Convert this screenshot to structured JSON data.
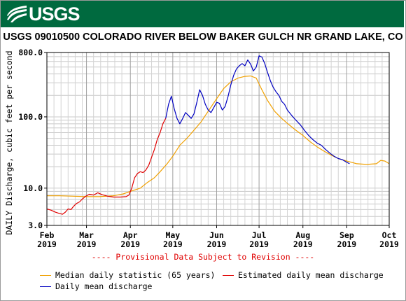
{
  "header": {
    "logo_text": "USGS",
    "brand_color": "#006a3f",
    "logo_icon": "usgs-wave-icon"
  },
  "chart_data": {
    "type": "line",
    "title": "USGS 09010500 COLORADO RIVER BELOW BAKER GULCH NR GRAND LAKE, CO",
    "ylabel": "DAILY Discharge, cubic feet per second",
    "xlabel": "",
    "yscale": "log",
    "ylim": [
      3.0,
      800.0
    ],
    "xlim": [
      "2019-02-01",
      "2019-10-01"
    ],
    "grid": true,
    "legend_position": "bottom",
    "ytick_labels": [
      "800.0",
      "100.0",
      "10.0",
      "3.0"
    ],
    "yticks": [
      800,
      100,
      10,
      3
    ],
    "xtick_labels": [
      {
        "month": "Feb",
        "year": "2019",
        "date": "2019-02-01"
      },
      {
        "month": "Mar",
        "year": "2019",
        "date": "2019-03-01"
      },
      {
        "month": "Apr",
        "year": "2019",
        "date": "2019-04-01"
      },
      {
        "month": "May",
        "year": "2019",
        "date": "2019-05-01"
      },
      {
        "month": "Jun",
        "year": "2019",
        "date": "2019-06-01"
      },
      {
        "month": "Jul",
        "year": "2019",
        "date": "2019-07-01"
      },
      {
        "month": "Aug",
        "year": "2019",
        "date": "2019-08-01"
      },
      {
        "month": "Sep",
        "year": "2019",
        "date": "2019-09-01"
      },
      {
        "month": "Oct",
        "year": "2019",
        "date": "2019-10-01"
      }
    ],
    "annotation": "---- Provisional Data Subject to Revision ----",
    "annotation_color": "#e00000",
    "series": [
      {
        "name": "Median daily statistic (65 years)",
        "color": "#f0a000",
        "points": [
          [
            "2019-02-01",
            7.8
          ],
          [
            "2019-02-10",
            7.8
          ],
          [
            "2019-02-20",
            7.7
          ],
          [
            "2019-03-01",
            7.6
          ],
          [
            "2019-03-10",
            7.6
          ],
          [
            "2019-03-20",
            7.8
          ],
          [
            "2019-03-27",
            8.3
          ],
          [
            "2019-04-01",
            9.0
          ],
          [
            "2019-04-08",
            10.0
          ],
          [
            "2019-04-13",
            12.0
          ],
          [
            "2019-04-18",
            14.0
          ],
          [
            "2019-04-22",
            17.0
          ],
          [
            "2019-04-27",
            22.0
          ],
          [
            "2019-05-01",
            28.0
          ],
          [
            "2019-05-06",
            40.0
          ],
          [
            "2019-05-11",
            50.0
          ],
          [
            "2019-05-16",
            65.0
          ],
          [
            "2019-05-21",
            85.0
          ],
          [
            "2019-05-26",
            120.0
          ],
          [
            "2019-06-01",
            180.0
          ],
          [
            "2019-06-06",
            250.0
          ],
          [
            "2019-06-11",
            310.0
          ],
          [
            "2019-06-16",
            350.0
          ],
          [
            "2019-06-21",
            370.0
          ],
          [
            "2019-06-25",
            375.0
          ],
          [
            "2019-06-29",
            350.0
          ],
          [
            "2019-07-03",
            240.0
          ],
          [
            "2019-07-07",
            170.0
          ],
          [
            "2019-07-12",
            120.0
          ],
          [
            "2019-07-17",
            95.0
          ],
          [
            "2019-07-22",
            78.0
          ],
          [
            "2019-07-27",
            65.0
          ],
          [
            "2019-08-01",
            55.0
          ],
          [
            "2019-08-06",
            45.0
          ],
          [
            "2019-08-11",
            38.0
          ],
          [
            "2019-08-16",
            33.0
          ],
          [
            "2019-08-21",
            29.0
          ],
          [
            "2019-08-26",
            26.0
          ],
          [
            "2019-09-01",
            24.0
          ],
          [
            "2019-09-08",
            22.0
          ],
          [
            "2019-09-15",
            21.5
          ],
          [
            "2019-09-22",
            22.0
          ],
          [
            "2019-09-25",
            24.5
          ],
          [
            "2019-09-28",
            24.0
          ],
          [
            "2019-10-01",
            22.0
          ]
        ]
      },
      {
        "name": "Estimated daily mean discharge",
        "color": "#e00000",
        "points": [
          [
            "2019-02-01",
            5.1
          ],
          [
            "2019-02-04",
            4.9
          ],
          [
            "2019-02-07",
            4.6
          ],
          [
            "2019-02-10",
            4.4
          ],
          [
            "2019-02-12",
            4.3
          ],
          [
            "2019-02-14",
            4.6
          ],
          [
            "2019-02-16",
            5.1
          ],
          [
            "2019-02-18",
            5.0
          ],
          [
            "2019-02-20",
            5.6
          ],
          [
            "2019-02-22",
            6.1
          ],
          [
            "2019-02-24",
            6.4
          ],
          [
            "2019-02-26",
            7.0
          ],
          [
            "2019-02-28",
            7.6
          ],
          [
            "2019-03-03",
            8.2
          ],
          [
            "2019-03-06",
            8.0
          ],
          [
            "2019-03-09",
            8.6
          ],
          [
            "2019-03-12",
            8.1
          ],
          [
            "2019-03-16",
            7.7
          ],
          [
            "2019-03-20",
            7.5
          ],
          [
            "2019-03-25",
            7.5
          ],
          [
            "2019-03-29",
            7.6
          ],
          [
            "2019-03-31",
            8.0
          ],
          [
            "2019-04-02",
            10.0
          ],
          [
            "2019-04-04",
            14.0
          ],
          [
            "2019-04-06",
            16.0
          ],
          [
            "2019-04-08",
            17.0
          ],
          [
            "2019-04-10",
            16.5
          ],
          [
            "2019-04-12",
            18.0
          ],
          [
            "2019-04-14",
            21.0
          ],
          [
            "2019-04-16",
            27.0
          ],
          [
            "2019-04-18",
            35.0
          ],
          [
            "2019-04-20",
            48.0
          ],
          [
            "2019-04-22",
            60.0
          ],
          [
            "2019-04-24",
            80.0
          ],
          [
            "2019-04-26",
            95.0
          ]
        ]
      },
      {
        "name": "Daily mean discharge",
        "color": "#0000c0",
        "points": [
          [
            "2019-04-26",
            95.0
          ],
          [
            "2019-04-28",
            150.0
          ],
          [
            "2019-04-30",
            195.0
          ],
          [
            "2019-05-02",
            130.0
          ],
          [
            "2019-05-04",
            95.0
          ],
          [
            "2019-05-06",
            80.0
          ],
          [
            "2019-05-08",
            95.0
          ],
          [
            "2019-05-10",
            115.0
          ],
          [
            "2019-05-12",
            105.0
          ],
          [
            "2019-05-14",
            95.0
          ],
          [
            "2019-05-16",
            110.0
          ],
          [
            "2019-05-18",
            160.0
          ],
          [
            "2019-05-20",
            240.0
          ],
          [
            "2019-05-22",
            200.0
          ],
          [
            "2019-05-24",
            150.0
          ],
          [
            "2019-05-26",
            125.0
          ],
          [
            "2019-05-28",
            115.0
          ],
          [
            "2019-05-30",
            135.0
          ],
          [
            "2019-06-01",
            160.0
          ],
          [
            "2019-06-03",
            155.0
          ],
          [
            "2019-06-05",
            125.0
          ],
          [
            "2019-06-07",
            140.0
          ],
          [
            "2019-06-09",
            190.0
          ],
          [
            "2019-06-11",
            280.0
          ],
          [
            "2019-06-13",
            380.0
          ],
          [
            "2019-06-15",
            470.0
          ],
          [
            "2019-06-17",
            520.0
          ],
          [
            "2019-06-19",
            560.0
          ],
          [
            "2019-06-21",
            520.0
          ],
          [
            "2019-06-23",
            630.0
          ],
          [
            "2019-06-25",
            550.0
          ],
          [
            "2019-06-27",
            440.0
          ],
          [
            "2019-06-29",
            500.0
          ],
          [
            "2019-07-01",
            720.0
          ],
          [
            "2019-07-03",
            690.0
          ],
          [
            "2019-07-05",
            560.0
          ],
          [
            "2019-07-07",
            420.0
          ],
          [
            "2019-07-09",
            320.0
          ],
          [
            "2019-07-11",
            260.0
          ],
          [
            "2019-07-13",
            225.0
          ],
          [
            "2019-07-15",
            200.0
          ],
          [
            "2019-07-17",
            165.0
          ],
          [
            "2019-07-19",
            150.0
          ],
          [
            "2019-07-21",
            125.0
          ],
          [
            "2019-07-24",
            105.0
          ],
          [
            "2019-07-27",
            90.0
          ],
          [
            "2019-07-30",
            78.0
          ],
          [
            "2019-08-02",
            65.0
          ],
          [
            "2019-08-05",
            55.0
          ],
          [
            "2019-08-08",
            48.0
          ],
          [
            "2019-08-11",
            43.0
          ],
          [
            "2019-08-14",
            40.0
          ],
          [
            "2019-08-17",
            35.0
          ],
          [
            "2019-08-20",
            31.0
          ],
          [
            "2019-08-23",
            28.0
          ],
          [
            "2019-08-26",
            26.0
          ],
          [
            "2019-08-29",
            25.0
          ],
          [
            "2019-09-01",
            23.0
          ],
          [
            "2019-09-03",
            22.0
          ]
        ]
      }
    ]
  }
}
